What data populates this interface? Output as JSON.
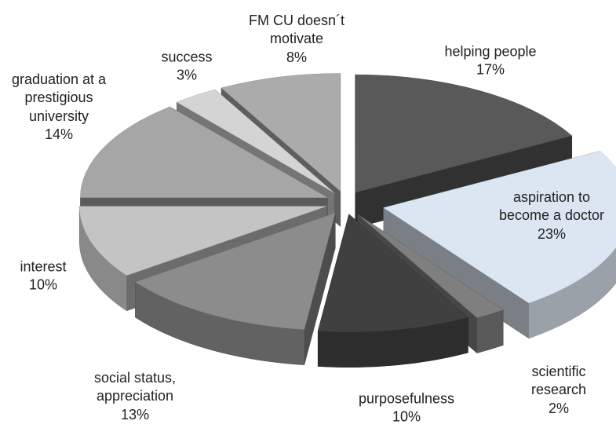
{
  "chart_data": {
    "type": "pie3d",
    "categories": [
      "helping people",
      "aspiration to become a doctor",
      "scientific research",
      "purposefulness",
      "social status, appreciation",
      "interest",
      "graduation at a prestigious university",
      "success",
      "FM CU doesn´t motivate"
    ],
    "values": [
      17,
      23,
      2,
      10,
      13,
      10,
      14,
      3,
      8
    ],
    "value_labels": [
      "17%",
      "23%",
      "2%",
      "10%",
      "13%",
      "10%",
      "14%",
      "3%",
      "8%"
    ],
    "colors": [
      "#595959",
      "#dce6f2",
      "#7f7f7f",
      "#404040",
      "#8c8c8c",
      "#c4c4c4",
      "#a6a6a6",
      "#d4d4d4",
      "#ababab"
    ]
  }
}
